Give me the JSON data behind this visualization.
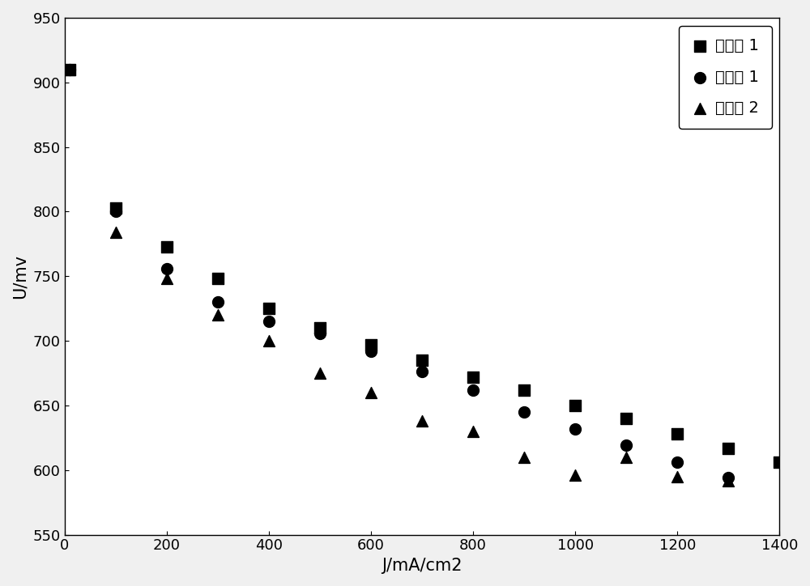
{
  "series1_label": "实施例 1",
  "series2_label": "对比例 1",
  "series3_label": "对比例 2",
  "series1_x": [
    10,
    100,
    200,
    300,
    400,
    500,
    600,
    700,
    800,
    900,
    1000,
    1100,
    1200,
    1300,
    1400
  ],
  "series1_y": [
    910,
    803,
    773,
    748,
    725,
    710,
    697,
    685,
    672,
    662,
    650,
    640,
    628,
    617,
    606
  ],
  "series2_x": [
    10,
    100,
    200,
    300,
    400,
    500,
    600,
    700,
    800,
    900,
    1000,
    1100,
    1200,
    1300
  ],
  "series2_y": [
    910,
    800,
    756,
    730,
    715,
    706,
    692,
    676,
    662,
    645,
    632,
    619,
    606,
    594
  ],
  "series3_x": [
    10,
    100,
    200,
    300,
    400,
    500,
    600,
    700,
    800,
    900,
    1000,
    1100,
    1200,
    1300
  ],
  "series3_y": [
    910,
    784,
    748,
    720,
    700,
    675,
    660,
    638,
    630,
    610,
    596,
    610,
    595,
    592
  ],
  "xlabel": "J/mA/cm2",
  "ylabel": "U/mv",
  "xlim": [
    0,
    1400
  ],
  "ylim": [
    550,
    950
  ],
  "yticks": [
    550,
    600,
    650,
    700,
    750,
    800,
    850,
    900,
    950
  ],
  "xticks": [
    0,
    200,
    400,
    600,
    800,
    1000,
    1200,
    1400
  ],
  "marker1": "s",
  "marker2": "o",
  "marker3": "^",
  "color": "black",
  "markersize": 10,
  "background_color": "#f0f0f0",
  "plot_bg": "white"
}
